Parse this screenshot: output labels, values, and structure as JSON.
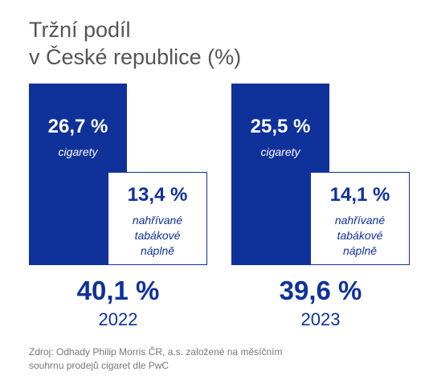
{
  "title": {
    "line1": "Tržní podíl",
    "line2": "v České republice (%)"
  },
  "chart_data": {
    "type": "bar",
    "title": "Tržní podíl v České republice (%)",
    "categories": [
      "2022",
      "2023"
    ],
    "series": [
      {
        "name": "cigarety",
        "values": [
          26.7,
          25.5
        ]
      },
      {
        "name": "nahřívané tabákové náplně",
        "values": [
          13.4,
          14.1
        ]
      }
    ],
    "totals": [
      40.1,
      39.6
    ],
    "groups": [
      {
        "year": "2022",
        "total_label": "40,1 %",
        "cig_value": "26,7 %",
        "cig_label": "cigarety",
        "htp_value": "13,4 %",
        "htp_label": [
          "nahřívané",
          "tabákové",
          "náplně"
        ]
      },
      {
        "year": "2023",
        "total_label": "39,6 %",
        "cig_value": "25,5 %",
        "cig_label": "cigarety",
        "htp_value": "14,1 %",
        "htp_label": [
          "nahřívané",
          "tabákové",
          "náplně"
        ]
      }
    ],
    "legend": "none",
    "grid": false
  },
  "colors": {
    "primary": "#0f319a",
    "title": "#555555",
    "source": "#777777"
  },
  "source": {
    "line1": "Zdroj: Odhady Philip Morris ČR, a.s. založené na měsíčním",
    "line2": "souhrnu prodejů cigaret dle PwC"
  }
}
